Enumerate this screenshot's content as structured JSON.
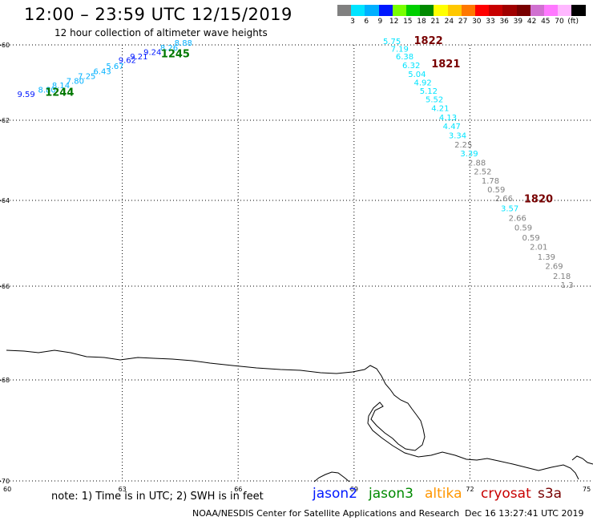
{
  "header": {
    "title": "12:00 – 23:59 UTC 12/15/2019",
    "subtitle": "12 hour collection of altimeter wave heights"
  },
  "scale": {
    "unit": "(ft)",
    "colors": [
      "#808080",
      "#00e4ff",
      "#00b0ff",
      "#0018ff",
      "#78ff00",
      "#00d000",
      "#008a00",
      "#ffff00",
      "#ffc800",
      "#ff7800",
      "#ff0000",
      "#c80000",
      "#a00000",
      "#780000",
      "#d070d0",
      "#ff78ff",
      "#ffb8ff",
      "#000000"
    ],
    "labels": [
      "3",
      "6",
      "9",
      "12",
      "15",
      "18",
      "21",
      "24",
      "27",
      "30",
      "33",
      "36",
      "39",
      "42",
      "45",
      "70"
    ]
  },
  "map": {
    "lon_ticks": [
      "60",
      "63",
      "66",
      "69",
      "72",
      "75"
    ],
    "lat_ticks": [
      "-60",
      "-62",
      "-64",
      "-66",
      "-68",
      "-70"
    ]
  },
  "tracks": [
    {
      "label": "1244",
      "label_color": "#007800",
      "label_lon": 61.0,
      "label_lat": -61.35,
      "points": [
        {
          "v": "9.59",
          "lon": 60.28,
          "lat": -61.38,
          "c": "#0018ff"
        },
        {
          "v": "8.80",
          "lon": 60.82,
          "lat": -61.27,
          "c": "#00b0ff"
        },
        {
          "v": "8.14",
          "lon": 61.18,
          "lat": -61.15,
          "c": "#00b0ff"
        },
        {
          "v": "7.80",
          "lon": 61.55,
          "lat": -61.03,
          "c": "#00b0ff"
        },
        {
          "v": "7.25",
          "lon": 61.85,
          "lat": -60.9,
          "c": "#00b0ff"
        },
        {
          "v": "6.43",
          "lon": 62.25,
          "lat": -60.78,
          "c": "#00b0ff"
        },
        {
          "v": "5.67",
          "lon": 62.58,
          "lat": -60.64,
          "c": "#00b0ff"
        }
      ]
    },
    {
      "label": "1245",
      "label_color": "#007800",
      "label_lon": 64.0,
      "label_lat": -60.33,
      "points": [
        {
          "v": "9.62",
          "lon": 62.9,
          "lat": -60.48,
          "c": "#0018ff"
        },
        {
          "v": "9.21",
          "lon": 63.2,
          "lat": -60.38,
          "c": "#0018ff"
        },
        {
          "v": "9.24",
          "lon": 63.55,
          "lat": -60.27,
          "c": "#0018ff"
        },
        {
          "v": "8.26",
          "lon": 63.98,
          "lat": -60.15,
          "c": "#00b0ff"
        },
        {
          "v": "8.88",
          "lon": 64.35,
          "lat": -60.02,
          "c": "#00b0ff"
        }
      ]
    },
    {
      "label": "1822",
      "label_color": "#780000",
      "label_lon": 70.55,
      "label_lat": -59.98,
      "points": [
        {
          "v": "5.75",
          "lon": 69.75,
          "lat": -59.98,
          "c": "#00e4ff"
        },
        {
          "v": "7.19",
          "lon": 69.95,
          "lat": -60.18,
          "c": "#00e4ff"
        },
        {
          "v": "6.38",
          "lon": 70.08,
          "lat": -60.38,
          "c": "#00e4ff"
        }
      ]
    },
    {
      "label": "1821",
      "label_color": "#780000",
      "label_lon": 71.0,
      "label_lat": -60.6,
      "points": [
        {
          "v": "6.32",
          "lon": 70.25,
          "lat": -60.62,
          "c": "#00e4ff"
        },
        {
          "v": "5.04",
          "lon": 70.4,
          "lat": -60.85,
          "c": "#00e4ff"
        },
        {
          "v": "4.92",
          "lon": 70.55,
          "lat": -61.07,
          "c": "#00e4ff"
        },
        {
          "v": "5.12",
          "lon": 70.7,
          "lat": -61.3,
          "c": "#00e4ff"
        },
        {
          "v": "5.52",
          "lon": 70.85,
          "lat": -61.52,
          "c": "#00e4ff"
        },
        {
          "v": "4.21",
          "lon": 71.0,
          "lat": -61.75,
          "c": "#00e4ff"
        },
        {
          "v": "4.13",
          "lon": 71.2,
          "lat": -62.0,
          "c": "#00e4ff"
        },
        {
          "v": "4.47",
          "lon": 71.3,
          "lat": -62.22,
          "c": "#00e4ff"
        },
        {
          "v": "3.34",
          "lon": 71.45,
          "lat": -62.45,
          "c": "#00e4ff"
        },
        {
          "v": "2.25",
          "lon": 71.6,
          "lat": -62.68,
          "c": "#808080"
        },
        {
          "v": "3.39",
          "lon": 71.75,
          "lat": -62.9,
          "c": "#00e4ff"
        },
        {
          "v": "2.88",
          "lon": 71.95,
          "lat": -63.13,
          "c": "#808080"
        },
        {
          "v": "2.52",
          "lon": 72.1,
          "lat": -63.35,
          "c": "#808080"
        },
        {
          "v": "1.78",
          "lon": 72.3,
          "lat": -63.58,
          "c": "#808080"
        },
        {
          "v": "0.59",
          "lon": 72.45,
          "lat": -63.8,
          "c": "#808080"
        }
      ]
    },
    {
      "label": "1820",
      "label_color": "#780000",
      "label_lon": 73.4,
      "label_lat": -64.05,
      "points": [
        {
          "v": "2.66",
          "lon": 72.65,
          "lat": -64.02,
          "c": "#808080"
        },
        {
          "v": "3.57",
          "lon": 72.8,
          "lat": -64.25,
          "c": "#00e4ff"
        },
        {
          "v": "2.66",
          "lon": 73.0,
          "lat": -64.48,
          "c": "#808080"
        },
        {
          "v": "0.59",
          "lon": 73.15,
          "lat": -64.7,
          "c": "#808080"
        },
        {
          "v": "0.59",
          "lon": 73.35,
          "lat": -64.93,
          "c": "#808080"
        },
        {
          "v": "2.01",
          "lon": 73.55,
          "lat": -65.15,
          "c": "#808080"
        },
        {
          "v": "1.39",
          "lon": 73.75,
          "lat": -65.38,
          "c": "#808080"
        },
        {
          "v": "2.69",
          "lon": 73.95,
          "lat": -65.6,
          "c": "#808080"
        },
        {
          "v": "2.18",
          "lon": 74.15,
          "lat": -65.83,
          "c": "#808080"
        },
        {
          "v": "1.3",
          "lon": 74.35,
          "lat": -66.03,
          "c": "#808080"
        }
      ]
    }
  ],
  "footer": {
    "note": "note: 1) Time is in UTC; 2) SWH is in feet",
    "satellites": [
      {
        "name": "jason2",
        "color": "#0018ff"
      },
      {
        "name": "jason3",
        "color": "#008a00"
      },
      {
        "name": "altika",
        "color": "#ff9600"
      },
      {
        "name": "cryosat",
        "color": "#c80000"
      },
      {
        "name": "s3a",
        "color": "#780000"
      }
    ],
    "credit": "NOAA/NESDIS Center for Satellite Applications and Research",
    "timestamp": "Dec 16 13:27:41 UTC 2019"
  }
}
